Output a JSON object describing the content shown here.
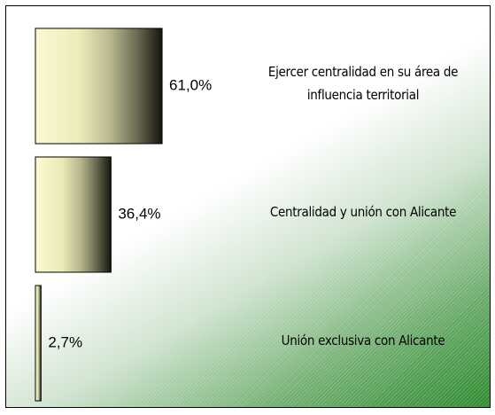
{
  "chart_data": {
    "type": "barh",
    "categories": [
      "Ejercer centralidad en su área de influencia territorial",
      "Centralidad y unión con Alicante",
      "Unión exclusiva con Alicante"
    ],
    "values": [
      61.0,
      36.4,
      2.7
    ],
    "value_labels": [
      "61,0%",
      "36,4%",
      "2,7%"
    ]
  }
}
